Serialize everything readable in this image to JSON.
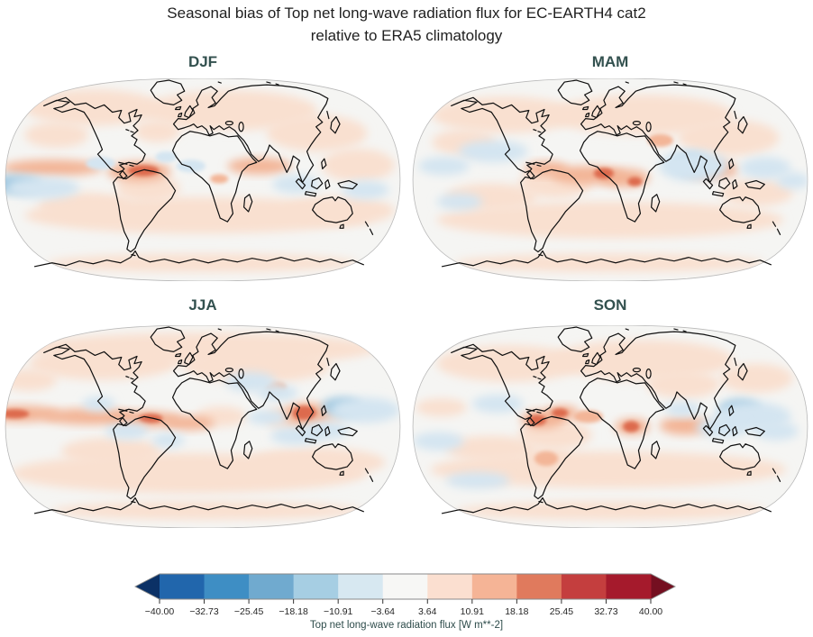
{
  "figure": {
    "title_line1": "Seasonal bias of Top net long-wave radiation flux for EC-EARTH4 cat2",
    "title_line2": "relative to ERA5 climatology"
  },
  "chart_data": {
    "type": "heatmap",
    "title": "Seasonal bias of Top net long-wave radiation flux for EC-EARTH4 cat2 relative to ERA5 climatology",
    "variable": "Top net long-wave radiation flux",
    "units": "W m**-2",
    "anomaly_levels_wm2": {
      "p1": 6,
      "p2": 14,
      "p3": 25,
      "m1": -6,
      "m2": -14,
      "m3": -25
    },
    "level_colors": {
      "p1": "#f9e0d0",
      "p2": "#f3b597",
      "p3": "#dd6b4e",
      "m1": "#d4e5f1",
      "m2": "#9cc6e0",
      "m3": "#74aad2"
    },
    "panels": [
      {
        "season": "DJF",
        "anomalies": [
          [
            100,
            32,
            75,
            20,
            "p1"
          ],
          [
            250,
            35,
            95,
            22,
            "p1"
          ],
          [
            345,
            60,
            55,
            20,
            "p1"
          ],
          [
            60,
            62,
            35,
            14,
            "p1"
          ],
          [
            170,
            58,
            25,
            12,
            "p1"
          ],
          [
            390,
            95,
            40,
            18,
            "p1"
          ],
          [
            215,
            150,
            190,
            20,
            "p1"
          ],
          [
            90,
            140,
            50,
            15,
            "p1"
          ],
          [
            370,
            145,
            60,
            16,
            "p1"
          ],
          [
            220,
            202,
            170,
            10,
            "p1"
          ],
          [
            160,
            120,
            35,
            15,
            "p1"
          ],
          [
            55,
            98,
            55,
            9,
            "p2"
          ],
          [
            150,
            102,
            35,
            11,
            "p2"
          ],
          [
            282,
            96,
            35,
            9,
            "p2"
          ],
          [
            238,
            110,
            10,
            5,
            "p2"
          ],
          [
            155,
            101,
            17,
            6,
            "p3"
          ],
          [
            12,
            116,
            32,
            10,
            "m2"
          ],
          [
            45,
            120,
            40,
            12,
            "m1"
          ],
          [
            108,
            93,
            16,
            7,
            "m1"
          ],
          [
            207,
            96,
            16,
            7,
            "m1"
          ],
          [
            322,
            116,
            26,
            10,
            "m1"
          ],
          [
            398,
            122,
            26,
            10,
            "m1"
          ],
          [
            180,
            86,
            12,
            6,
            "m1"
          ]
        ]
      },
      {
        "season": "MAM",
        "anomalies": [
          [
            105,
            40,
            80,
            20,
            "p1"
          ],
          [
            255,
            40,
            100,
            22,
            "p1"
          ],
          [
            350,
            65,
            55,
            20,
            "p1"
          ],
          [
            220,
            155,
            190,
            20,
            "p1"
          ],
          [
            90,
            130,
            50,
            15,
            "p1"
          ],
          [
            380,
            125,
            40,
            15,
            "p1"
          ],
          [
            220,
            202,
            170,
            10,
            "p1"
          ],
          [
            60,
            70,
            35,
            14,
            "p1"
          ],
          [
            160,
            115,
            40,
            16,
            "p1"
          ],
          [
            150,
            99,
            24,
            8,
            "p2"
          ],
          [
            195,
            106,
            40,
            10,
            "p2"
          ],
          [
            235,
            109,
            28,
            10,
            "p2"
          ],
          [
            330,
            100,
            30,
            10,
            "p2"
          ],
          [
            275,
            68,
            14,
            7,
            "p2"
          ],
          [
            213,
            104,
            11,
            6,
            "p3"
          ],
          [
            247,
            113,
            8,
            5,
            "p3"
          ],
          [
            307,
            93,
            20,
            11,
            "m2"
          ],
          [
            311,
            96,
            38,
            17,
            "m1"
          ],
          [
            92,
            80,
            38,
            12,
            "m1"
          ],
          [
            38,
            96,
            28,
            10,
            "m1"
          ],
          [
            390,
            98,
            28,
            12,
            "m1"
          ],
          [
            420,
            112,
            18,
            9,
            "m1"
          ],
          [
            55,
            135,
            25,
            9,
            "m1"
          ]
        ]
      },
      {
        "season": "JJA",
        "anomalies": [
          [
            220,
            26,
            190,
            18,
            "p1"
          ],
          [
            110,
            42,
            80,
            18,
            "p1"
          ],
          [
            280,
            45,
            80,
            18,
            "p1"
          ],
          [
            205,
            162,
            195,
            22,
            "p1"
          ],
          [
            345,
            150,
            75,
            16,
            "p1"
          ],
          [
            120,
            138,
            55,
            15,
            "p1"
          ],
          [
            225,
            203,
            170,
            10,
            "p1"
          ],
          [
            30,
            60,
            30,
            12,
            "p1"
          ],
          [
            331,
            102,
            42,
            16,
            "p1"
          ],
          [
            240,
            100,
            28,
            11,
            "p1"
          ],
          [
            22,
            97,
            42,
            9,
            "p2"
          ],
          [
            95,
            100,
            50,
            9,
            "p2"
          ],
          [
            155,
            103,
            42,
            9,
            "p2"
          ],
          [
            205,
            107,
            28,
            8,
            "p2"
          ],
          [
            333,
            98,
            26,
            12,
            "p2"
          ],
          [
            300,
            68,
            12,
            6,
            "p2"
          ],
          [
            14,
            97,
            16,
            5,
            "p3"
          ],
          [
            163,
            102,
            13,
            5,
            "p3"
          ],
          [
            331,
            96,
            13,
            8,
            "p3"
          ],
          [
            372,
            89,
            22,
            10,
            "m2"
          ],
          [
            398,
            93,
            38,
            14,
            "m1"
          ],
          [
            272,
            62,
            28,
            11,
            "m1"
          ],
          [
            302,
            74,
            22,
            9,
            "m1"
          ],
          [
            291,
            101,
            22,
            8,
            "m1"
          ],
          [
            322,
            121,
            28,
            10,
            "m1"
          ],
          [
            137,
            116,
            24,
            9,
            "m1"
          ],
          [
            106,
            86,
            18,
            8,
            "m1"
          ],
          [
            182,
            126,
            18,
            8,
            "m1"
          ],
          [
            355,
            115,
            25,
            10,
            "m1"
          ]
        ]
      },
      {
        "season": "SON",
        "anomalies": [
          [
            110,
            42,
            80,
            20,
            "p1"
          ],
          [
            255,
            38,
            100,
            22,
            "p1"
          ],
          [
            380,
            58,
            40,
            16,
            "p1"
          ],
          [
            218,
            158,
            195,
            20,
            "p1"
          ],
          [
            222,
            203,
            170,
            10,
            "p1"
          ],
          [
            90,
            135,
            50,
            14,
            "p1"
          ],
          [
            35,
            90,
            28,
            10,
            "p1"
          ],
          [
            160,
            120,
            40,
            16,
            "p1"
          ],
          [
            300,
            65,
            40,
            15,
            "p1"
          ],
          [
            152,
            148,
            26,
            12,
            "p1"
          ],
          [
            146,
            103,
            24,
            10,
            "p2"
          ],
          [
            168,
            96,
            18,
            8,
            "p2"
          ],
          [
            244,
            111,
            19,
            9,
            "p2"
          ],
          [
            302,
            110,
            28,
            10,
            "p2"
          ],
          [
            150,
            146,
            13,
            8,
            "p2"
          ],
          [
            196,
            100,
            16,
            7,
            "p2"
          ],
          [
            140,
            104,
            10,
            6,
            "p3"
          ],
          [
            165,
            96,
            9,
            5,
            "p3"
          ],
          [
            243,
            111,
            9,
            6,
            "p3"
          ],
          [
            362,
            92,
            23,
            11,
            "m2"
          ],
          [
            376,
            100,
            42,
            16,
            "m1"
          ],
          [
            342,
            112,
            28,
            11,
            "m1"
          ],
          [
            402,
            116,
            24,
            10,
            "m1"
          ],
          [
            97,
            86,
            28,
            10,
            "m1"
          ],
          [
            32,
            127,
            28,
            10,
            "m1"
          ],
          [
            75,
            170,
            35,
            9,
            "m1"
          ],
          [
            300,
            92,
            20,
            8,
            "m1"
          ]
        ]
      }
    ],
    "colorbar": {
      "label": "Top net long-wave radiation flux [W m**-2]",
      "range": [
        -40,
        40
      ],
      "ticks": [
        "−40.00",
        "−32.73",
        "−25.45",
        "−18.18",
        "−10.91",
        "−3.64",
        "3.64",
        "10.91",
        "18.18",
        "25.45",
        "32.73",
        "40.00"
      ],
      "segment_colors": [
        "#2166ac",
        "#3e8ec4",
        "#70aacf",
        "#a6cee3",
        "#d7e8f1",
        "#f7f7f5",
        "#fbdfd0",
        "#f5b496",
        "#e07a5d",
        "#c43e3e",
        "#a51a2c"
      ],
      "under_color": "#0b3166",
      "over_color": "#740f20"
    }
  }
}
